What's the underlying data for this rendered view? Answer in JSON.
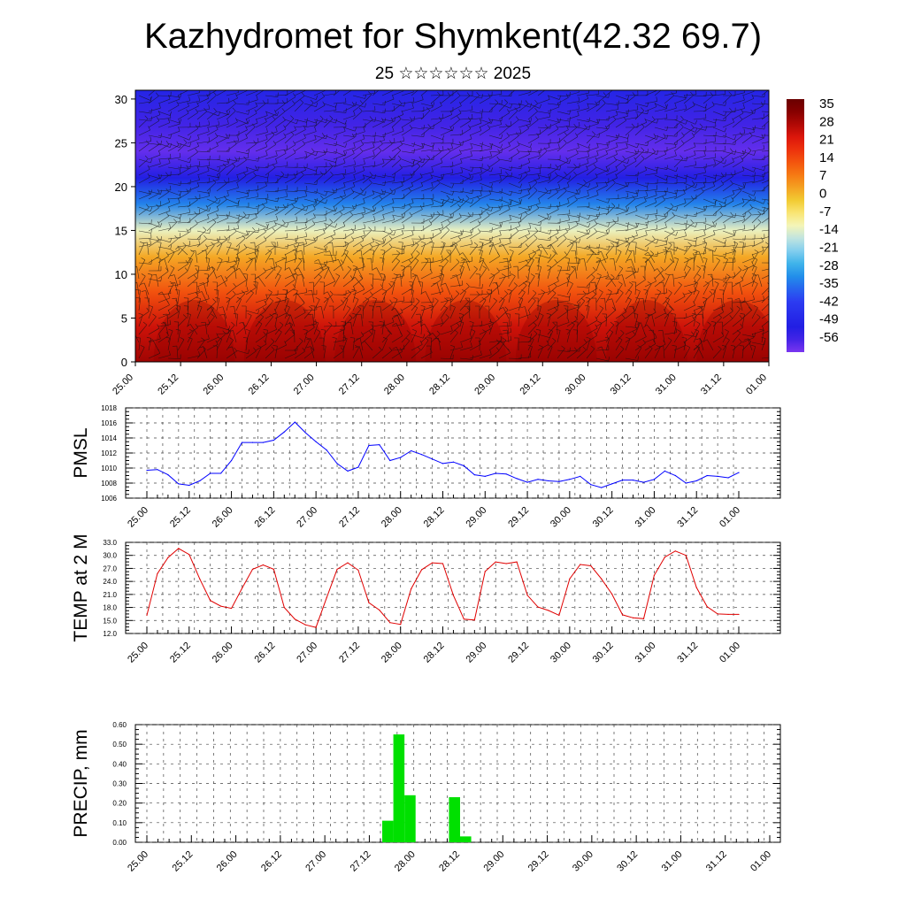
{
  "title": "Kazhydromet for Shymkent(42.32 69.7)",
  "subtitle": "25 ☆☆☆☆☆☆ 2025",
  "time_labels": [
    "25.00",
    "25.12",
    "26.00",
    "26.12",
    "27.00",
    "27.12",
    "28.00",
    "28.12",
    "29.00",
    "29.12",
    "30.00",
    "30.12",
    "31.00",
    "31.12",
    "01.00"
  ],
  "chart_data": [
    {
      "type": "heatmap",
      "description_source": "Vertical cross-section of temperature with wind barbs",
      "y_ticks": [
        0,
        5,
        10,
        15,
        20,
        25,
        30
      ],
      "ylim": [
        0,
        31
      ],
      "colorbar": {
        "labels": [
          "35",
          "28",
          "21",
          "14",
          "7",
          "0",
          "-7",
          "-14",
          "-21",
          "-28",
          "-35",
          "-42",
          "-49",
          "-56"
        ],
        "range": [
          -60,
          38
        ]
      },
      "colors": {
        "hot": "#8e0000",
        "red": "#e8190d",
        "orange": "#f76e0e",
        "yellow": "#f2d235",
        "paleyellow": "#fff8b0",
        "lightblue": "#a9ddf1",
        "cyan": "#1fa6e8",
        "blue": "#2c3df2",
        "deepblue": "#2019e0",
        "violet": "#7a35f0"
      },
      "profile": [
        {
          "h": 0,
          "t": 30
        },
        {
          "h": 4,
          "t": 25
        },
        {
          "h": 8,
          "t": 14
        },
        {
          "h": 12,
          "t": 3
        },
        {
          "h": 15,
          "t": -12
        },
        {
          "h": 18,
          "t": -32
        },
        {
          "h": 21,
          "t": -50
        },
        {
          "h": 24,
          "t": -58
        },
        {
          "h": 27,
          "t": -55
        },
        {
          "h": 31,
          "t": -48
        }
      ]
    },
    {
      "type": "line",
      "ylabel": "PMSL",
      "ylim": [
        1006,
        1018
      ],
      "y_ticks": [
        1006,
        1008,
        1010,
        1012,
        1014,
        1016,
        1018
      ],
      "color": "#0000ff",
      "x": [
        0,
        1,
        2,
        3,
        4,
        5,
        6,
        7,
        8,
        9,
        10,
        11,
        12,
        13,
        14,
        15,
        16,
        17,
        18,
        19,
        20,
        21,
        22,
        23,
        24,
        25,
        26,
        27,
        28,
        29,
        30,
        31,
        32,
        33,
        34,
        35,
        36,
        37,
        38,
        39,
        40,
        41,
        42,
        43,
        44,
        45,
        46,
        47,
        48,
        49,
        50,
        51,
        52,
        53,
        54,
        55,
        56
      ],
      "values": [
        1009.7,
        1009.8,
        1009.1,
        1007.9,
        1007.7,
        1008.3,
        1009.3,
        1009.3,
        1011.0,
        1013.4,
        1013.4,
        1013.4,
        1013.7,
        1014.8,
        1016.1,
        1014.7,
        1013.5,
        1012.4,
        1010.6,
        1009.6,
        1010.1,
        1013.0,
        1013.1,
        1011.0,
        1011.4,
        1012.3,
        1011.8,
        1011.2,
        1010.6,
        1010.8,
        1010.3,
        1009.1,
        1008.9,
        1009.3,
        1009.2,
        1008.6,
        1008.1,
        1008.5,
        1008.3,
        1008.2,
        1008.5,
        1008.9,
        1007.8,
        1007.4,
        1007.9,
        1008.4,
        1008.4,
        1008.1,
        1008.5,
        1009.6,
        1009.0,
        1008.0,
        1008.3,
        1009.0,
        1008.9,
        1008.7,
        1009.4
      ]
    },
    {
      "type": "line",
      "ylabel": "TEMP at 2 M",
      "ylim": [
        12.0,
        33.0
      ],
      "y_ticks": [
        12.0,
        15.0,
        18.0,
        21.0,
        24.0,
        27.0,
        30.0,
        33.0
      ],
      "color": "#e00000",
      "x": [
        0,
        1,
        2,
        3,
        4,
        5,
        6,
        7,
        8,
        9,
        10,
        11,
        12,
        13,
        14,
        15,
        16,
        17,
        18,
        19,
        20,
        21,
        22,
        23,
        24,
        25,
        26,
        27,
        28,
        29,
        30,
        31,
        32,
        33,
        34,
        35,
        36,
        37,
        38,
        39,
        40,
        41,
        42,
        43,
        44,
        45,
        46,
        47,
        48,
        49,
        50,
        51,
        52,
        53,
        54,
        55,
        56
      ],
      "values": [
        16.2,
        25.8,
        29.5,
        31.6,
        30.2,
        24.6,
        19.6,
        18.3,
        17.8,
        22.4,
        26.8,
        27.8,
        26.8,
        18.0,
        15.3,
        14.0,
        13.4,
        20.2,
        26.8,
        28.3,
        26.6,
        19.1,
        17.4,
        14.5,
        14.1,
        22.3,
        26.7,
        28.3,
        28.1,
        20.8,
        15.3,
        15.1,
        26.3,
        28.5,
        28.1,
        28.5,
        20.8,
        18.1,
        17.3,
        16.2,
        24.6,
        27.9,
        27.6,
        24.6,
        21.1,
        16.3,
        15.6,
        15.4,
        25.4,
        29.6,
        31.0,
        30.0,
        22.6,
        18.2,
        16.5,
        16.4,
        16.4
      ]
    },
    {
      "type": "bar",
      "ylabel": "PRECIP, mm",
      "ylim": [
        0,
        0.6
      ],
      "y_ticks": [
        "0.00",
        "0.10",
        "0.20",
        "0.30",
        "0.40",
        "0.50",
        "0.60"
      ],
      "color": "#00e000",
      "x": [
        21,
        22,
        23,
        27,
        28
      ],
      "values": [
        0.11,
        0.55,
        0.24,
        0.23,
        0.03
      ]
    }
  ]
}
